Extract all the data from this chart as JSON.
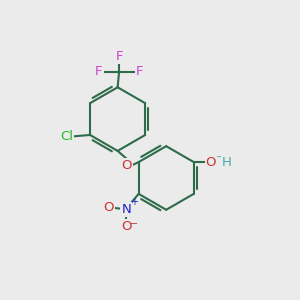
{
  "bg_color": "#ebebeb",
  "bond_color": "#2d6b4a",
  "bond_width": 1.5,
  "atom_colors": {
    "F": "#cc44cc",
    "Cl": "#22bb22",
    "O": "#cc3333",
    "N": "#2222cc",
    "OH_color": "#44aaaa"
  },
  "font_size": 10,
  "fig_size": [
    3.0,
    3.0
  ],
  "dpi": 100
}
